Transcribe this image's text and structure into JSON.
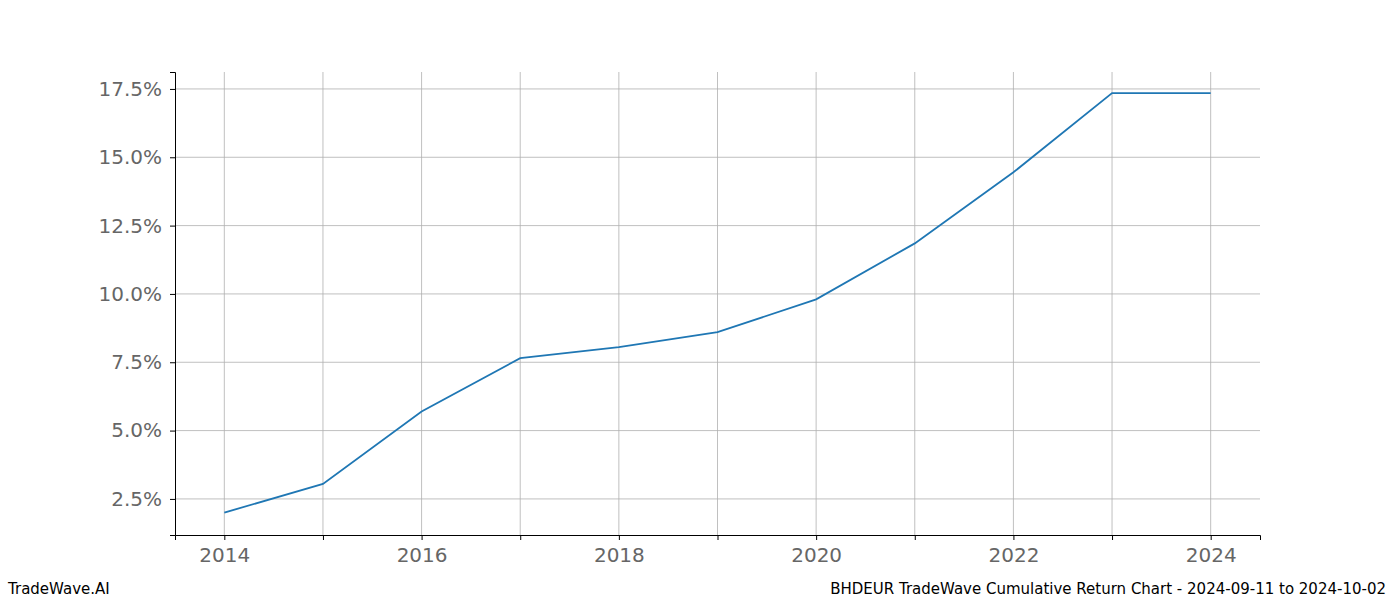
{
  "chart_data": {
    "type": "line",
    "title": "BHDEUR TradeWave Cumulative Return Chart - 2024-09-11 to 2024-10-02",
    "annotations": [
      "TradeWave.AI"
    ],
    "x": [
      2014,
      2015,
      2016,
      2017,
      2018,
      2019,
      2020,
      2021,
      2022,
      2023,
      2024
    ],
    "values": [
      2.0,
      3.05,
      5.7,
      7.65,
      8.05,
      8.6,
      9.8,
      11.85,
      14.45,
      17.35,
      17.35
    ],
    "color": "#1f77b4",
    "xlim": [
      2013.5,
      2024.5
    ],
    "xticks": [
      2014,
      {
        "value": 2015,
        "label": null
      },
      2016,
      {
        "value": 2017,
        "label": null
      },
      2018,
      {
        "value": 2019,
        "label": null
      },
      2020,
      {
        "value": 2021,
        "label": null
      },
      2022,
      {
        "value": 2023,
        "label": null
      },
      2024
    ],
    "ylim": [
      1.18,
      18.12
    ],
    "yticks": [
      {
        "value": 2.5,
        "label": "2.5%"
      },
      {
        "value": 5.0,
        "label": "5.0%"
      },
      {
        "value": 7.5,
        "label": "7.5%"
      },
      {
        "value": 10.0,
        "label": "10.0%"
      },
      {
        "value": 12.5,
        "label": "12.5%"
      },
      {
        "value": 15.0,
        "label": "15.0%"
      },
      {
        "value": 17.5,
        "label": "17.5%"
      }
    ],
    "grid": true
  }
}
